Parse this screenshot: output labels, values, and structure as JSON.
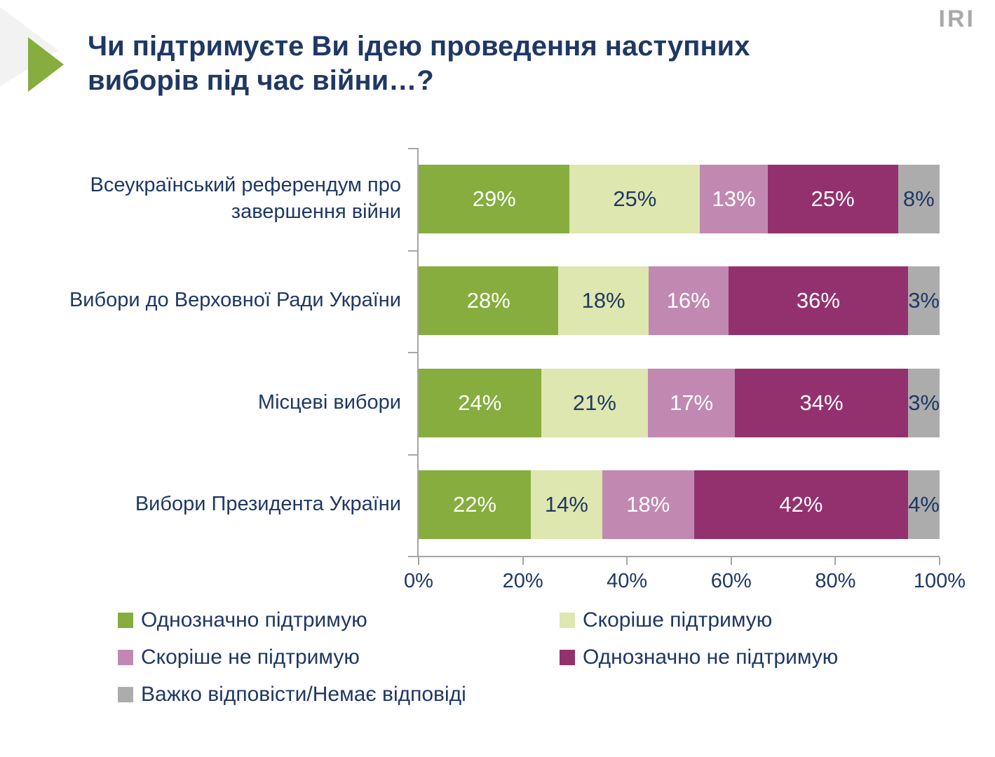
{
  "logo": "IRI",
  "header": {
    "title": "Чи підтримуєте Ви ідею проведення наступних виборів під час війни…?"
  },
  "colors": {
    "title_text": "#1F3864",
    "axis": "#A6A6A6",
    "logo_gray": "#A9A9A9",
    "decor_gray": "#F2F2F2",
    "accent_green": "#86AD3E"
  },
  "chart_data": {
    "type": "bar",
    "orientation": "horizontal",
    "stacked": true,
    "xlim": [
      0,
      100
    ],
    "x_ticks": [
      "0%",
      "20%",
      "40%",
      "60%",
      "80%",
      "100%"
    ],
    "grid": false,
    "legend_position": "bottom-left",
    "categories": [
      "Всеукраїнський референдум про завершення війни",
      "Вибори до Верховної Ради України",
      "Місцеві вибори",
      "Вибори Президента України"
    ],
    "series": [
      {
        "name": "Однозначно підтримую",
        "color": "#86AD3E",
        "label_color": "#FFFFFF",
        "values": [
          29,
          28,
          24,
          22
        ]
      },
      {
        "name": "Скоріше підтримую",
        "color": "#DDE7AF",
        "label_color": "#1F3864",
        "values": [
          25,
          18,
          21,
          14
        ]
      },
      {
        "name": "Скоріше не підтримую",
        "color": "#C189B1",
        "label_color": "#FFFFFF",
        "values": [
          13,
          16,
          17,
          18
        ]
      },
      {
        "name": "Однозначно не підтримую",
        "color": "#93316F",
        "label_color": "#FFFFFF",
        "values": [
          25,
          36,
          34,
          42
        ]
      },
      {
        "name": "Важко відповісти/Немає відповіді",
        "color": "#ACACAC",
        "label_color": "#1F3864",
        "values": [
          8,
          3,
          3,
          4
        ]
      }
    ]
  }
}
